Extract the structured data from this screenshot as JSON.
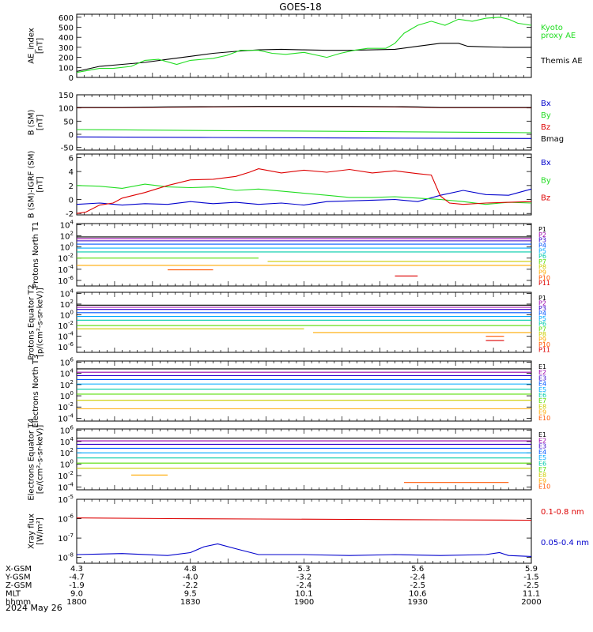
{
  "title": "GOES-18",
  "date": "2024 May 26",
  "colors": {
    "black": "#000000",
    "green": "#22dd22",
    "red": "#dd0000",
    "blue": "#0000cc",
    "p1": "#000000",
    "p2": "#9900aa",
    "p3": "#3300cc",
    "p4": "#0055ff",
    "p5": "#00aaff",
    "p6": "#00ccaa",
    "p7": "#55dd00",
    "p8": "#cccc00",
    "p9": "#ffaa00",
    "p10": "#ff5500",
    "p11": "#dd0000"
  },
  "chart_data": [
    {
      "id": "ae",
      "type": "line",
      "ylabel": "AE_index [nT]",
      "yticks": [
        "600",
        "500",
        "400",
        "300",
        "200",
        "100",
        "0"
      ],
      "ylim": [
        0,
        630
      ],
      "legend": [
        {
          "text": "Kyoto",
          "color": "#22dd22"
        },
        {
          "text": "proxy AE",
          "color": "#22dd22"
        },
        {
          "text": "Themis AE",
          "color": "#000000"
        }
      ],
      "series": [
        {
          "name": "Themis AE",
          "color": "#000000",
          "x": [
            0,
            0.05,
            0.1,
            0.15,
            0.2,
            0.25,
            0.3,
            0.35,
            0.4,
            0.45,
            0.5,
            0.55,
            0.6,
            0.65,
            0.7,
            0.75,
            0.8,
            0.84,
            0.86,
            0.9,
            0.95,
            1.0
          ],
          "y": [
            60,
            110,
            130,
            150,
            180,
            210,
            240,
            260,
            275,
            280,
            275,
            270,
            270,
            275,
            280,
            310,
            340,
            340,
            310,
            305,
            300,
            300
          ]
        },
        {
          "name": "Kyoto proxy AE",
          "color": "#22dd22",
          "x": [
            0,
            0.05,
            0.08,
            0.12,
            0.15,
            0.18,
            0.22,
            0.25,
            0.3,
            0.33,
            0.36,
            0.4,
            0.43,
            0.46,
            0.5,
            0.55,
            0.58,
            0.61,
            0.64,
            0.68,
            0.7,
            0.72,
            0.75,
            0.78,
            0.81,
            0.84,
            0.87,
            0.9,
            0.93,
            0.95,
            0.97,
            1.0
          ],
          "y": [
            50,
            90,
            90,
            110,
            170,
            180,
            130,
            170,
            190,
            220,
            270,
            270,
            240,
            230,
            250,
            200,
            240,
            270,
            290,
            290,
            340,
            440,
            520,
            560,
            520,
            580,
            560,
            590,
            600,
            580,
            540,
            520
          ]
        }
      ]
    },
    {
      "id": "bsm",
      "type": "line",
      "ylabel": "B (SM) [nT]",
      "yticks": [
        "150",
        "100",
        "50",
        "0",
        "-50"
      ],
      "ylim": [
        -60,
        150
      ],
      "legend": [
        {
          "text": "Bx",
          "color": "#0000cc"
        },
        {
          "text": "By",
          "color": "#22dd22"
        },
        {
          "text": "Bz",
          "color": "#dd0000"
        },
        {
          "text": "Bmag",
          "color": "#000000"
        }
      ],
      "series": [
        {
          "name": "Bx",
          "color": "#0000cc",
          "x": [
            0,
            0.3,
            0.6,
            1.0
          ],
          "y": [
            -10,
            -12,
            -14,
            -16
          ]
        },
        {
          "name": "By",
          "color": "#22dd22",
          "x": [
            0,
            0.3,
            0.6,
            1.0
          ],
          "y": [
            18,
            14,
            11,
            6
          ]
        },
        {
          "name": "Bz",
          "color": "#dd0000",
          "x": [
            0,
            0.1,
            0.2,
            0.3,
            0.4,
            0.5,
            0.6,
            0.7,
            0.75,
            0.8,
            0.9,
            1.0
          ],
          "y": [
            101,
            101,
            103,
            104,
            105,
            105,
            105,
            104,
            103,
            101,
            101,
            101
          ]
        },
        {
          "name": "Bmag",
          "color": "#000000",
          "x": [
            0,
            0.1,
            0.2,
            0.3,
            0.4,
            0.5,
            0.6,
            0.7,
            0.75,
            0.8,
            0.9,
            1.0
          ],
          "y": [
            102,
            102,
            104,
            105,
            106,
            106,
            106,
            105,
            104,
            102,
            102,
            102
          ]
        }
      ]
    },
    {
      "id": "bdiff",
      "type": "line",
      "ylabel": "B (SM)-IGRF (SM) [nT]",
      "yticks": [
        "6",
        "4",
        "2",
        "0",
        "-2"
      ],
      "ylim": [
        -2.2,
        6.5
      ],
      "legend": [
        {
          "text": "Bx",
          "color": "#0000cc"
        },
        {
          "text": "By",
          "color": "#22dd22"
        },
        {
          "text": "Bz",
          "color": "#dd0000"
        }
      ],
      "series": [
        {
          "name": "Bx",
          "color": "#0000cc",
          "x": [
            0,
            0.05,
            0.1,
            0.15,
            0.2,
            0.25,
            0.3,
            0.35,
            0.4,
            0.45,
            0.5,
            0.55,
            0.6,
            0.65,
            0.7,
            0.75,
            0.8,
            0.85,
            0.9,
            0.95,
            1.0
          ],
          "y": [
            -0.7,
            -0.5,
            -0.8,
            -0.6,
            -0.7,
            -0.3,
            -0.6,
            -0.4,
            -0.7,
            -0.5,
            -0.8,
            -0.3,
            -0.2,
            -0.1,
            0.0,
            -0.3,
            0.6,
            1.3,
            0.7,
            0.6,
            1.5
          ]
        },
        {
          "name": "By",
          "color": "#22dd22",
          "x": [
            0,
            0.05,
            0.1,
            0.15,
            0.2,
            0.25,
            0.3,
            0.35,
            0.4,
            0.45,
            0.5,
            0.55,
            0.6,
            0.65,
            0.7,
            0.75,
            0.8,
            0.85,
            0.9,
            0.95,
            1.0
          ],
          "y": [
            2.0,
            1.9,
            1.6,
            2.2,
            1.8,
            1.7,
            1.8,
            1.3,
            1.5,
            1.2,
            0.9,
            0.6,
            0.3,
            0.3,
            0.4,
            0.2,
            0.0,
            -0.3,
            -0.7,
            -0.4,
            -0.5
          ]
        },
        {
          "name": "Bz",
          "color": "#dd0000",
          "x": [
            0,
            0.02,
            0.05,
            0.08,
            0.1,
            0.15,
            0.2,
            0.25,
            0.3,
            0.35,
            0.38,
            0.4,
            0.45,
            0.5,
            0.55,
            0.6,
            0.65,
            0.7,
            0.75,
            0.78,
            0.8,
            0.82,
            0.85,
            0.9,
            0.95,
            1.0
          ],
          "y": [
            -2.0,
            -1.8,
            -0.8,
            -0.5,
            0.2,
            1.0,
            2.0,
            2.8,
            2.9,
            3.3,
            3.9,
            4.4,
            3.8,
            4.2,
            3.9,
            4.3,
            3.8,
            4.1,
            3.7,
            3.5,
            0.5,
            -0.5,
            -0.7,
            -0.5,
            -0.4,
            -0.3
          ]
        }
      ]
    },
    {
      "id": "pnorth",
      "type": "line",
      "ylabel": "Protons North T1",
      "yticks_log": [
        4,
        2,
        0,
        -2,
        -4,
        -6
      ],
      "ylim_log": [
        -7,
        4.2
      ],
      "labels": [
        "P1",
        "P2",
        "P3",
        "P4",
        "P5",
        "P6",
        "P7",
        "P8",
        "P9",
        "P10",
        "P11"
      ],
      "levels": [
        1.8,
        1.5,
        1.1,
        0.5,
        -0.2,
        -0.9,
        -2.0,
        -2.6,
        -3.3,
        -4.1,
        -5.2
      ],
      "segments": [
        [
          0,
          1
        ],
        [
          0,
          1
        ],
        [
          0,
          1
        ],
        [
          0,
          1
        ],
        [
          0,
          1
        ],
        [
          0,
          1
        ],
        [
          0,
          0.4
        ],
        [
          0.42,
          1
        ],
        [
          0,
          1
        ],
        [
          0.2,
          0.3
        ],
        [
          0.7,
          0.75
        ]
      ]
    },
    {
      "id": "peq",
      "type": "line",
      "ylabel": "Protons Equator T2 [p/(cm²-s-sr-keV)]",
      "yticks_log": [
        4,
        2,
        0,
        -2,
        -4,
        -6
      ],
      "ylim_log": [
        -7,
        4.2
      ],
      "labels": [
        "P1",
        "P2",
        "P3",
        "P4",
        "P5",
        "P6",
        "P7",
        "P8",
        "P9",
        "P10",
        "P11"
      ],
      "levels": [
        1.8,
        1.4,
        1.0,
        0.4,
        -0.3,
        -1.0,
        -2.0,
        -2.6,
        -3.3,
        -4.0,
        -4.8
      ],
      "segments": [
        [
          0,
          1
        ],
        [
          0,
          1
        ],
        [
          0,
          1
        ],
        [
          0,
          1
        ],
        [
          0,
          1
        ],
        [
          0,
          1
        ],
        [
          0,
          1
        ],
        [
          0,
          0.5
        ],
        [
          0.52,
          1
        ],
        [
          0.9,
          0.94
        ],
        [
          0.9,
          0.94
        ]
      ]
    },
    {
      "id": "enorth",
      "type": "line",
      "ylabel": "Electrons North T3",
      "yticks_log": [
        6,
        4,
        2,
        0,
        -2,
        -4
      ],
      "ylim_log": [
        -4.5,
        6.2
      ],
      "labels": [
        "E1",
        "E2",
        "E3",
        "E4",
        "E5",
        "E6",
        "E7",
        "E8",
        "E9",
        "E10"
      ],
      "levels": [
        4.8,
        4.2,
        3.6,
        2.9,
        2.1,
        1.2,
        0.3,
        -0.8,
        -2.3,
        -2.6
      ],
      "segments": [
        [
          0,
          1
        ],
        [
          0,
          1
        ],
        [
          0,
          1
        ],
        [
          0,
          1
        ],
        [
          0,
          1
        ],
        [
          0,
          1
        ],
        [
          0,
          1
        ],
        [
          0,
          1
        ],
        [
          0,
          1
        ],
        [
          0,
          0
        ]
      ]
    },
    {
      "id": "eeq",
      "type": "line",
      "ylabel": "Electrons Equator T4 [e/(cm²-s-sr-keV)]",
      "yticks_log": [
        6,
        4,
        2,
        0,
        -2,
        -4
      ],
      "ylim_log": [
        -4.5,
        6.2
      ],
      "labels": [
        "E1",
        "E2",
        "E3",
        "E4",
        "E5",
        "E6",
        "E7",
        "E8",
        "E9",
        "E10"
      ],
      "levels": [
        4.6,
        4.1,
        3.5,
        2.8,
        2.0,
        1.1,
        0.2,
        -0.7,
        -1.9,
        -3.2
      ],
      "segments": [
        [
          0,
          1
        ],
        [
          0,
          1
        ],
        [
          0,
          1
        ],
        [
          0,
          1
        ],
        [
          0,
          1
        ],
        [
          0,
          1
        ],
        [
          0,
          1
        ],
        [
          0,
          1
        ],
        [
          0.12,
          0.2
        ],
        [
          0.72,
          0.95
        ]
      ]
    },
    {
      "id": "xray",
      "type": "line",
      "ylabel": "Xray flux [W/m²]",
      "yticks_log": [
        -5,
        -6,
        -7,
        -8
      ],
      "ylim_log": [
        -8.3,
        -5
      ],
      "legend": [
        {
          "text": "0.1-0.8 nm",
          "color": "#dd0000"
        },
        {
          "text": "0.05-0.4 nm",
          "color": "#0000cc"
        }
      ],
      "series": [
        {
          "name": "0.1-0.8 nm",
          "color": "#dd0000",
          "x": [
            0,
            0.2,
            0.4,
            0.6,
            0.8,
            1.0
          ],
          "y": [
            -5.96,
            -6.0,
            -6.02,
            -6.04,
            -6.06,
            -6.08
          ]
        },
        {
          "name": "0.05-0.4 nm",
          "color": "#0000cc",
          "x": [
            0,
            0.1,
            0.2,
            0.25,
            0.28,
            0.31,
            0.35,
            0.4,
            0.5,
            0.6,
            0.7,
            0.8,
            0.9,
            0.93,
            0.95,
            1.0
          ],
          "y": [
            -7.85,
            -7.8,
            -7.9,
            -7.75,
            -7.45,
            -7.3,
            -7.55,
            -7.85,
            -7.85,
            -7.9,
            -7.85,
            -7.9,
            -7.85,
            -7.75,
            -7.9,
            -7.95
          ]
        }
      ]
    }
  ],
  "footer": {
    "rows": [
      {
        "label": "X-GSM",
        "values": [
          "4.3",
          "4.8",
          "5.3",
          "5.6",
          "5.9"
        ]
      },
      {
        "label": "Y-GSM",
        "values": [
          "-4.7",
          "-4.0",
          "-3.2",
          "-2.4",
          "-1.5"
        ]
      },
      {
        "label": "Z-GSM",
        "values": [
          "-1.9",
          "-2.2",
          "-2.4",
          "-2.5",
          "-2.5"
        ]
      },
      {
        "label": "MLT",
        "values": [
          "9.0",
          "9.5",
          "10.1",
          "10.6",
          "11.1"
        ]
      },
      {
        "label": "hhmm",
        "values": [
          "1800",
          "1830",
          "1900",
          "1930",
          "2000"
        ]
      }
    ]
  }
}
